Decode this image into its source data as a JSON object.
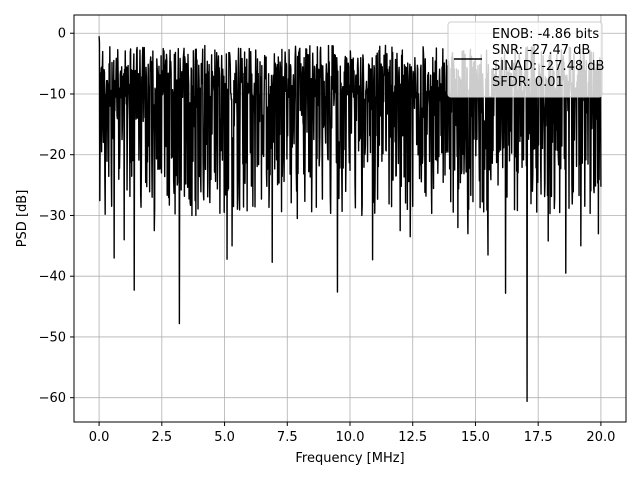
{
  "chart_data": {
    "type": "line",
    "title": "",
    "xlabel": "Frequency [MHz]",
    "ylabel": "PSD [dB]",
    "xlim": [
      -1.0,
      21.0
    ],
    "ylim": [
      -64.0,
      3.0
    ],
    "xticks": [
      0.0,
      2.5,
      5.0,
      7.5,
      10.0,
      12.5,
      15.0,
      17.5,
      20.0
    ],
    "xtick_labels": [
      "0.0",
      "2.5",
      "5.0",
      "7.5",
      "10.0",
      "12.5",
      "15.0",
      "17.5",
      "20.0"
    ],
    "yticks": [
      0,
      -10,
      -20,
      -30,
      -40,
      -50,
      -60
    ],
    "ytick_labels": [
      "0",
      "−10",
      "−20",
      "−30",
      "−40",
      "−50",
      "−60"
    ],
    "grid": true,
    "legend_position": "top-right",
    "legend_lines": [
      "ENOB: -4.86 bits",
      "SNR: -27.47 dB",
      "SINAD: -27.48 dB",
      "SFDR: 0.01"
    ],
    "series": [
      {
        "color": "#000000",
        "description": "noisy power spectral density trace spanning 0 to 20 MHz",
        "x_range": [
          0.0,
          20.0
        ],
        "upper_envelope_approx": -2.0,
        "typical_band": [
          -22.0,
          -5.0
        ],
        "peak_points": [
          {
            "x": 0.0,
            "y": -0.5
          },
          {
            "x": 0.02,
            "y": -1.5
          }
        ],
        "dip_points": [
          {
            "x": 0.6,
            "y": -37.0
          },
          {
            "x": 1.0,
            "y": -34.0
          },
          {
            "x": 1.4,
            "y": -42.3
          },
          {
            "x": 2.2,
            "y": -32.5
          },
          {
            "x": 3.2,
            "y": -47.8
          },
          {
            "x": 3.7,
            "y": -30.0
          },
          {
            "x": 5.1,
            "y": -37.2
          },
          {
            "x": 5.3,
            "y": -35.0
          },
          {
            "x": 6.9,
            "y": -37.7
          },
          {
            "x": 7.9,
            "y": -30.5
          },
          {
            "x": 9.5,
            "y": -42.6
          },
          {
            "x": 10.9,
            "y": -37.3
          },
          {
            "x": 12.0,
            "y": -32.5
          },
          {
            "x": 12.4,
            "y": -33.5
          },
          {
            "x": 14.3,
            "y": -32.0
          },
          {
            "x": 14.7,
            "y": -33.0
          },
          {
            "x": 15.5,
            "y": -36.5
          },
          {
            "x": 16.2,
            "y": -42.8
          },
          {
            "x": 17.05,
            "y": -60.6
          },
          {
            "x": 17.9,
            "y": -34.2
          },
          {
            "x": 18.6,
            "y": -39.5
          },
          {
            "x": 19.2,
            "y": -35.0
          },
          {
            "x": 19.9,
            "y": -33.0
          }
        ]
      }
    ]
  }
}
